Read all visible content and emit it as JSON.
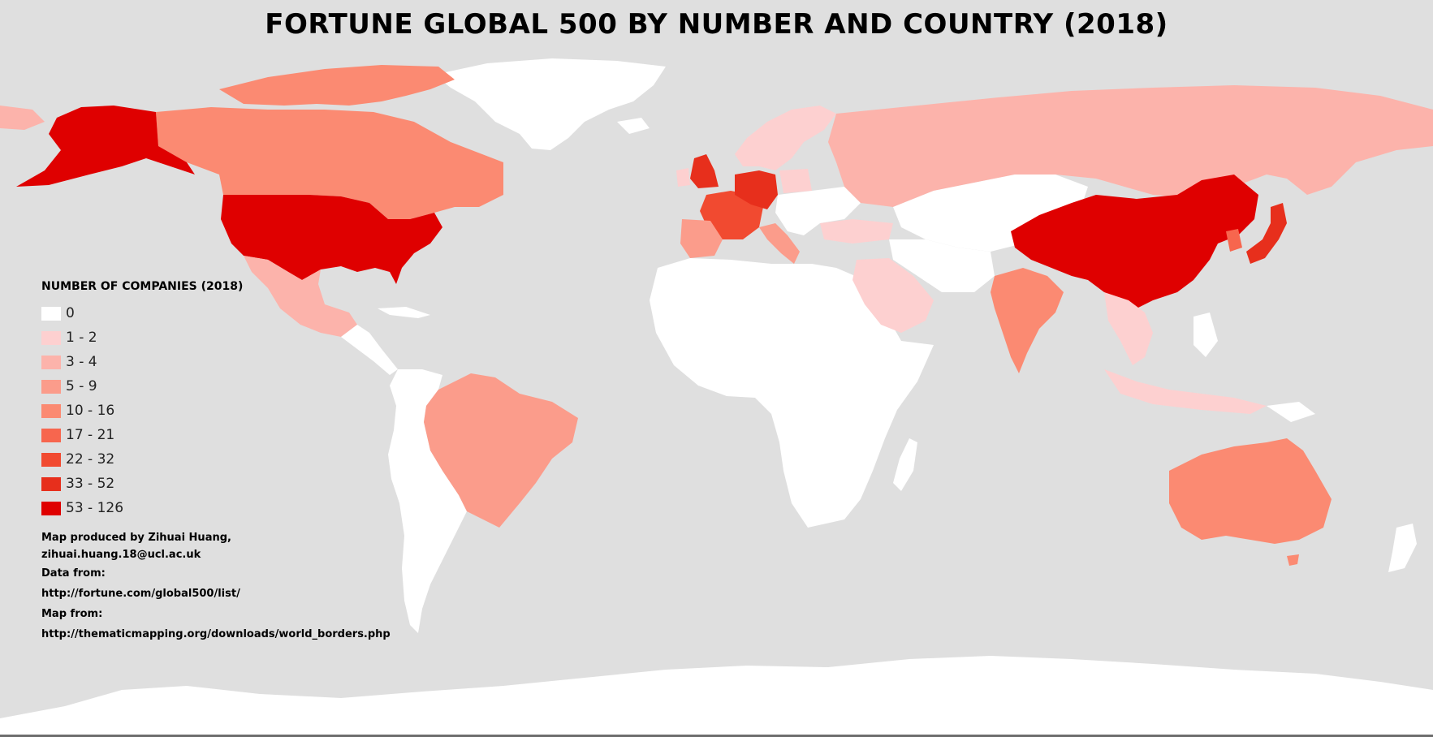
{
  "title": "FORTUNE GLOBAL 500 BY NUMBER AND COUNTRY (2018)",
  "legend": {
    "title": "NUMBER OF COMPANIES (2018)",
    "classes": [
      {
        "label": "0",
        "color": "#ffffff"
      },
      {
        "label": "1 - 2",
        "color": "#fdd0d0"
      },
      {
        "label": "3 - 4",
        "color": "#fcb3ab"
      },
      {
        "label": "5 - 9",
        "color": "#fb9c8b"
      },
      {
        "label": "10 - 16",
        "color": "#fb8a72"
      },
      {
        "label": "17 - 21",
        "color": "#f7664e"
      },
      {
        "label": "22 - 32",
        "color": "#f14a30"
      },
      {
        "label": "33 - 52",
        "color": "#e72f1c"
      },
      {
        "label": "53 - 126",
        "color": "#df0000"
      }
    ]
  },
  "credits": {
    "line1": "Map produced by Zihuai Huang,",
    "line2": "zihuai.huang.18@ucl.ac.uk",
    "line3": "Data from:",
    "line4": "http://fortune.com/global500/list/",
    "line5": "Map from:",
    "line6": "http://thematicmapping.org/downloads/world_borders.php"
  },
  "colors": {
    "ocean": "#dfdfdf",
    "land_none": "#ffffff"
  }
}
